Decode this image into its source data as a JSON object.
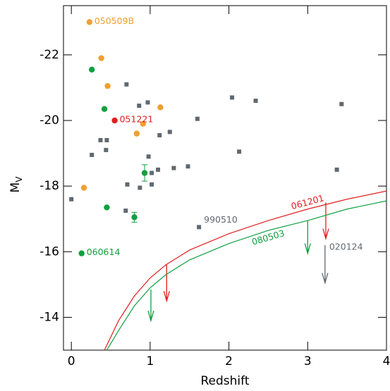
{
  "chart_data": {
    "type": "scatter",
    "xlabel": "Redshift",
    "ylabel": "M",
    "ylabel_sub": "V",
    "xlim": [
      -0.1,
      4
    ],
    "ylim": [
      -13,
      -23.5
    ],
    "xticks": [
      0,
      1,
      2,
      3,
      4
    ],
    "yticks": [
      -14,
      -16,
      -18,
      -20,
      -22
    ],
    "series": [
      {
        "marker": "point",
        "color": "#f0a030",
        "x": [
          0.23,
          0.38,
          0.46,
          1.13,
          0.91,
          0.83,
          0.16
        ],
        "y": [
          -23.0,
          -21.9,
          -21.05,
          -20.4,
          -19.9,
          -19.6,
          -17.95
        ],
        "labels": [
          "050509B",
          null,
          null,
          null,
          null,
          null,
          null
        ]
      },
      {
        "marker": "point",
        "color": "#10a040",
        "x": [
          0.26,
          0.42,
          0.93,
          0.45,
          0.8,
          0.13
        ],
        "y": [
          -21.55,
          -20.35,
          -18.4,
          -17.35,
          -17.05,
          -15.95
        ],
        "y_err": [
          null,
          null,
          0.25,
          null,
          0.15,
          null
        ],
        "labels": [
          null,
          null,
          null,
          null,
          null,
          "060614"
        ]
      },
      {
        "marker": "point",
        "color": "#e02020",
        "x": [
          0.55
        ],
        "y": [
          -20.0
        ],
        "labels": [
          "051221"
        ]
      },
      {
        "marker": "square",
        "color": "#606870",
        "x": [
          0.0,
          0.26,
          0.37,
          0.45,
          0.44,
          0.7,
          0.86,
          0.97,
          1.12,
          1.25,
          0.98,
          1.02,
          1.1,
          1.3,
          1.48,
          1.02,
          0.87,
          0.71,
          0.69,
          1.6,
          2.04,
          2.34,
          2.13,
          3.43,
          3.37,
          1.62
        ],
        "y": [
          -17.6,
          -18.95,
          -19.4,
          -19.4,
          -19.1,
          -21.1,
          -20.45,
          -20.55,
          -19.55,
          -19.65,
          -18.9,
          -18.4,
          -18.5,
          -18.55,
          -18.6,
          -18.05,
          -17.95,
          -18.05,
          -17.25,
          -20.05,
          -20.7,
          -20.6,
          -19.05,
          -20.5,
          -18.5,
          -16.75
        ],
        "labels": [
          null,
          null,
          null,
          null,
          null,
          null,
          null,
          null,
          null,
          null,
          null,
          null,
          null,
          null,
          null,
          null,
          null,
          null,
          null,
          null,
          null,
          null,
          null,
          null,
          null,
          "990510"
        ]
      },
      {
        "marker": "arrow",
        "color": "#606870",
        "x": [
          3.22
        ],
        "y": [
          -16.2
        ],
        "y_end": [
          -15.05
        ],
        "labels": [
          "020124"
        ]
      },
      {
        "marker": "arrow",
        "color": "#e02020",
        "x": [
          1.21,
          3.23
        ],
        "y": [
          -15.6,
          -17.5
        ],
        "y_end": [
          -14.5,
          -16.4
        ]
      },
      {
        "marker": "arrow",
        "color": "#10a040",
        "x": [
          1.01,
          3.0
        ],
        "y": [
          -14.85,
          -16.95
        ],
        "y_end": [
          -13.9,
          -15.95
        ]
      },
      {
        "marker": "line",
        "color": "#e02020",
        "x": [
          0.42,
          0.6,
          0.8,
          1.0,
          1.2,
          1.5,
          2.0,
          2.5,
          3.0,
          3.5,
          4.0
        ],
        "y": [
          -13.0,
          -13.9,
          -14.65,
          -15.2,
          -15.6,
          -16.05,
          -16.55,
          -16.95,
          -17.3,
          -17.6,
          -17.85
        ],
        "labels": [
          null,
          null,
          null,
          null,
          null,
          null,
          null,
          null,
          "061201",
          null,
          null
        ]
      },
      {
        "marker": "line",
        "color": "#10a040",
        "x": [
          0.45,
          0.6,
          0.8,
          1.0,
          1.2,
          1.5,
          2.0,
          2.5,
          3.0,
          3.5,
          4.0
        ],
        "y": [
          -13.0,
          -13.6,
          -14.35,
          -14.9,
          -15.3,
          -15.75,
          -16.25,
          -16.65,
          -16.95,
          -17.3,
          -17.55
        ],
        "labels": [
          null,
          null,
          null,
          null,
          null,
          null,
          null,
          "080503",
          null,
          null,
          null
        ]
      }
    ]
  }
}
